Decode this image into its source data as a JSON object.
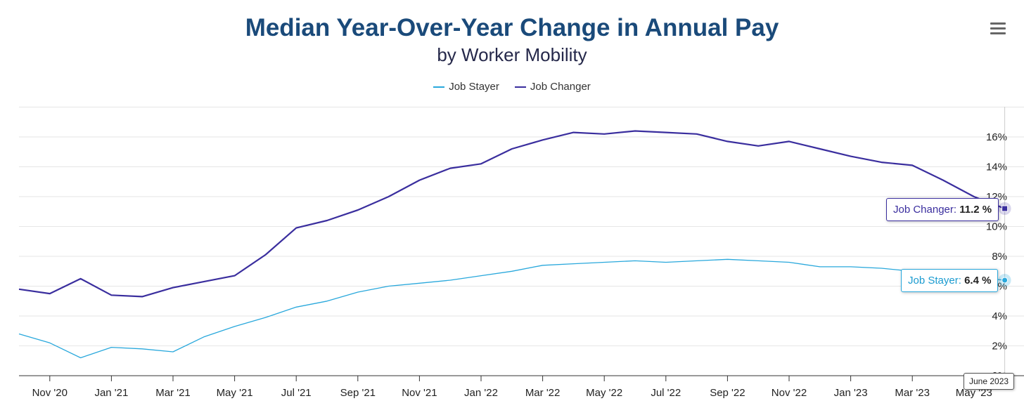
{
  "chart_data": {
    "type": "line",
    "title": "Median Year-Over-Year Change in Annual Pay",
    "subtitle": "by Worker Mobility",
    "xlabel": "",
    "ylabel": "",
    "x": [
      "Oct 2020",
      "Nov 2020",
      "Dec 2020",
      "Jan 2021",
      "Feb 2021",
      "Mar 2021",
      "Apr 2021",
      "May 2021",
      "Jun 2021",
      "Jul 2021",
      "Aug 2021",
      "Sep 2021",
      "Oct 2021",
      "Nov 2021",
      "Dec 2021",
      "Jan 2022",
      "Feb 2022",
      "Mar 2022",
      "Apr 2022",
      "May 2022",
      "Jun 2022",
      "Jul 2022",
      "Aug 2022",
      "Sep 2022",
      "Oct 2022",
      "Nov 2022",
      "Dec 2022",
      "Jan 2023",
      "Feb 2023",
      "Mar 2023",
      "Apr 2023",
      "May 2023",
      "Jun 2023"
    ],
    "x_tick_labels": [
      "Nov '20",
      "Jan '21",
      "Mar '21",
      "May '21",
      "Jul '21",
      "Sep '21",
      "Nov '21",
      "Jan '22",
      "Mar '22",
      "May '22",
      "Jul '22",
      "Sep '22",
      "Nov '22",
      "Jan '23",
      "Mar '23",
      "May '23"
    ],
    "x_tick_index": [
      1,
      3,
      5,
      7,
      9,
      11,
      13,
      15,
      17,
      19,
      21,
      23,
      25,
      27,
      29,
      31
    ],
    "y_ticks": [
      0,
      2,
      4,
      6,
      8,
      10,
      12,
      14,
      16
    ],
    "y_tick_labels": [
      "0%",
      "2%",
      "4%",
      "6%",
      "8%",
      "10%",
      "12%",
      "14%",
      "16%"
    ],
    "ylim": [
      0,
      18
    ],
    "y_axis_side": "right",
    "grid": true,
    "legend_position": "top-center",
    "series": [
      {
        "name": "Job Stayer",
        "color": "#29a8dc",
        "values": [
          2.8,
          2.2,
          1.2,
          1.9,
          1.8,
          1.6,
          2.6,
          3.3,
          3.9,
          4.6,
          5.0,
          5.6,
          6.0,
          6.2,
          6.4,
          6.7,
          7.0,
          7.4,
          7.5,
          7.6,
          7.7,
          7.6,
          7.7,
          7.8,
          7.7,
          7.6,
          7.3,
          7.3,
          7.2,
          7.0,
          6.8,
          6.6,
          6.4
        ]
      },
      {
        "name": "Job Changer",
        "color": "#3a2e9e",
        "values": [
          5.8,
          5.5,
          6.5,
          5.4,
          5.3,
          5.9,
          6.3,
          6.7,
          8.1,
          9.9,
          10.4,
          11.1,
          12.0,
          13.1,
          13.9,
          14.2,
          15.2,
          15.8,
          16.3,
          16.2,
          16.4,
          16.3,
          16.2,
          15.7,
          15.4,
          15.7,
          15.2,
          14.7,
          14.3,
          14.1,
          13.1,
          12.0,
          11.2
        ]
      }
    ]
  },
  "menu_icon": "hamburger-menu-icon",
  "tooltips": {
    "changer": {
      "name": "Job Changer",
      "value": "11.2 %",
      "sep": ": "
    },
    "stayer": {
      "name": "Job Stayer",
      "value": "6.4 %",
      "sep": ": "
    }
  },
  "crosshair_date": "June 2023"
}
